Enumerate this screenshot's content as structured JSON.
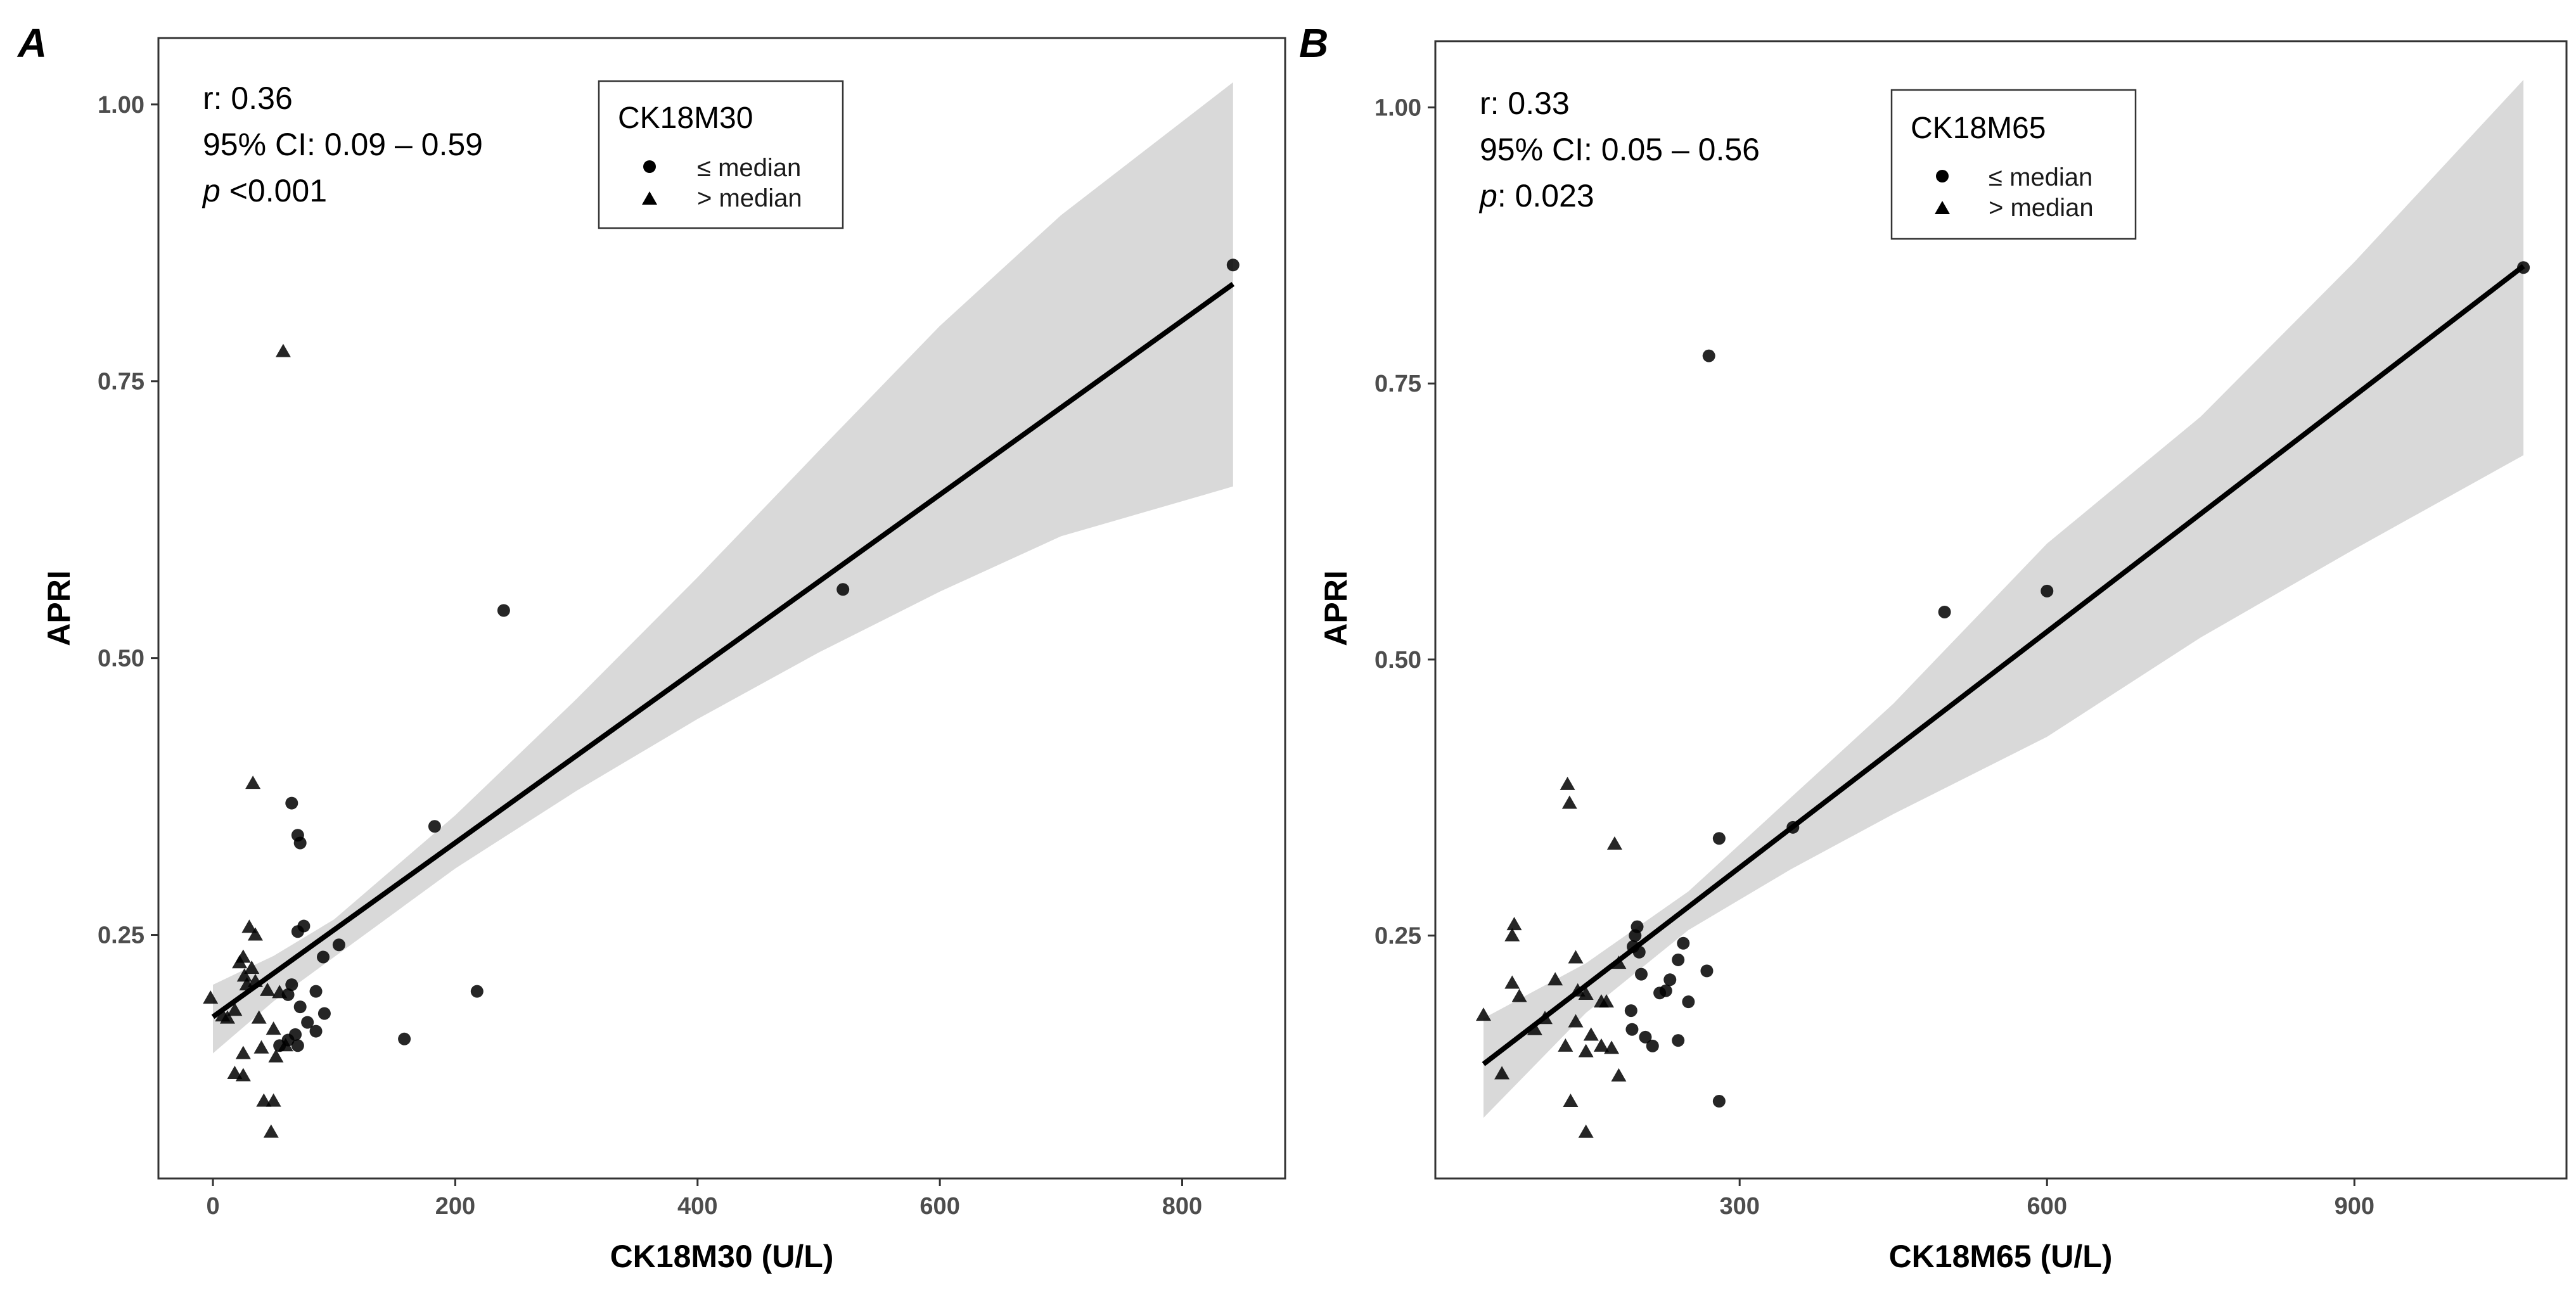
{
  "chart_data": [
    {
      "type": "scatter",
      "panel": "A",
      "xlabel": "CK18M30 (U/L)",
      "ylabel": "APRI",
      "xlim": [
        -45,
        885
      ],
      "ylim": [
        0.03,
        1.06
      ],
      "xticks": [
        0,
        200,
        400,
        600,
        800
      ],
      "xtick_labels": [
        "0",
        "200",
        "400",
        "600",
        "800"
      ],
      "yticks": [
        0.25,
        0.5,
        0.75,
        1.0
      ],
      "ytick_labels": [
        "0.25",
        "0.50",
        "0.75",
        "1.00"
      ],
      "grid": false,
      "stats": {
        "r": "r: 0.36",
        "ci": "95% CI: 0.09 – 0.59",
        "p_symbol": "p",
        "p_value": " <0.001"
      },
      "legend": {
        "title": "CK18M30",
        "position": "top-center",
        "items": [
          "≤ median",
          "> median"
        ]
      },
      "fit": {
        "intercept": 0.176,
        "slope": 0.000786,
        "x_range": [
          0,
          842
        ]
      },
      "band": {
        "x": [
          0,
          50,
          100,
          200,
          300,
          400,
          500,
          600,
          700,
          842
        ],
        "lower": [
          0.143,
          0.19,
          0.23,
          0.31,
          0.38,
          0.445,
          0.505,
          0.56,
          0.61,
          0.655
        ],
        "upper": [
          0.205,
          0.231,
          0.264,
          0.358,
          0.463,
          0.573,
          0.687,
          0.8,
          0.9,
          1.02
        ]
      },
      "series": [
        {
          "name": "≤ median",
          "marker": "circle",
          "points": [
            [
              842,
              0.855
            ],
            [
              520,
              0.562
            ],
            [
              240,
              0.543
            ],
            [
              183,
              0.348
            ],
            [
              65,
              0.369
            ],
            [
              70,
              0.34
            ],
            [
              72,
              0.333
            ],
            [
              75,
              0.258
            ],
            [
              70,
              0.253
            ],
            [
              104,
              0.241
            ],
            [
              91,
              0.23
            ],
            [
              218,
              0.199
            ],
            [
              158,
              0.156
            ],
            [
              65,
              0.205
            ],
            [
              85,
              0.199
            ],
            [
              62,
              0.196
            ],
            [
              72,
              0.185
            ],
            [
              92,
              0.179
            ],
            [
              78,
              0.171
            ],
            [
              85,
              0.163
            ],
            [
              68,
              0.16
            ],
            [
              62,
              0.155
            ],
            [
              70,
              0.15
            ],
            [
              55,
              0.15
            ]
          ]
        },
        {
          "name": "> median",
          "marker": "triangle",
          "points": [
            [
              58,
              0.777
            ],
            [
              33,
              0.387
            ],
            [
              30,
              0.257
            ],
            [
              35,
              0.25
            ],
            [
              25,
              0.23
            ],
            [
              22,
              0.225
            ],
            [
              32,
              0.22
            ],
            [
              26,
              0.213
            ],
            [
              35,
              0.208
            ],
            [
              28,
              0.205
            ],
            [
              45,
              0.2
            ],
            [
              55,
              0.198
            ],
            [
              -2,
              0.193
            ],
            [
              18,
              0.182
            ],
            [
              8,
              0.177
            ],
            [
              12,
              0.175
            ],
            [
              38,
              0.175
            ],
            [
              50,
              0.165
            ],
            [
              60,
              0.15
            ],
            [
              40,
              0.148
            ],
            [
              25,
              0.143
            ],
            [
              52,
              0.14
            ],
            [
              18,
              0.125
            ],
            [
              25,
              0.123
            ],
            [
              42,
              0.1
            ],
            [
              50,
              0.1
            ],
            [
              48,
              0.072
            ]
          ]
        }
      ]
    },
    {
      "type": "scatter",
      "panel": "B",
      "xlabel": "CK18M65 (U/L)",
      "ylabel": "APRI",
      "xlim": [
        3,
        1107
      ],
      "ylim": [
        0.03,
        1.06
      ],
      "xticks": [
        300,
        600,
        900
      ],
      "xtick_labels": [
        "300",
        "600",
        "900"
      ],
      "yticks": [
        0.25,
        0.5,
        0.75,
        1.0
      ],
      "ytick_labels": [
        "0.25",
        "0.50",
        "0.75",
        "1.00"
      ],
      "grid": false,
      "stats": {
        "r": "r: 0.33",
        "ci": "95% CI: 0.05 – 0.56",
        "p_symbol": "p",
        "p_value": ": 0.023"
      },
      "legend": {
        "title": "CK18M65",
        "position": "top-center",
        "items": [
          "≤ median",
          "> median"
        ]
      },
      "fit": {
        "intercept": 0.098,
        "slope": 0.000712,
        "x_range": [
          50,
          1065
        ]
      },
      "band": {
        "x": [
          50,
          150,
          250,
          350,
          450,
          600,
          750,
          900,
          1065
        ],
        "lower": [
          0.085,
          0.18,
          0.255,
          0.31,
          0.36,
          0.43,
          0.52,
          0.6,
          0.685
        ],
        "upper": [
          0.175,
          0.225,
          0.29,
          0.375,
          0.46,
          0.605,
          0.72,
          0.86,
          1.025
        ]
      },
      "series": [
        {
          "name": "≤ median",
          "marker": "circle",
          "points": [
            [
              1065,
              0.855
            ],
            [
              600,
              0.562
            ],
            [
              500,
              0.543
            ],
            [
              352,
              0.348
            ],
            [
              270,
              0.775
            ],
            [
              280,
              0.338
            ],
            [
              200,
              0.258
            ],
            [
              198,
              0.25
            ],
            [
              245,
              0.243
            ],
            [
              196,
              0.24
            ],
            [
              202,
              0.235
            ],
            [
              240,
              0.228
            ],
            [
              268,
              0.218
            ],
            [
              204,
              0.215
            ],
            [
              232,
              0.21
            ],
            [
              228,
              0.2
            ],
            [
              222,
              0.198
            ],
            [
              250,
              0.19
            ],
            [
              194,
              0.182
            ],
            [
              195,
              0.165
            ],
            [
              208,
              0.158
            ],
            [
              240,
              0.155
            ],
            [
              215,
              0.15
            ],
            [
              280,
              0.1
            ]
          ]
        },
        {
          "name": "> median",
          "marker": "triangle",
          "points": [
            [
              132,
              0.387
            ],
            [
              134,
              0.37
            ],
            [
              178,
              0.333
            ],
            [
              80,
              0.26
            ],
            [
              78,
              0.25
            ],
            [
              140,
              0.23
            ],
            [
              182,
              0.225
            ],
            [
              120,
              0.21
            ],
            [
              78,
              0.207
            ],
            [
              142,
              0.2
            ],
            [
              150,
              0.197
            ],
            [
              85,
              0.195
            ],
            [
              165,
              0.19
            ],
            [
              170,
              0.19
            ],
            [
              50,
              0.178
            ],
            [
              110,
              0.175
            ],
            [
              140,
              0.172
            ],
            [
              100,
              0.165
            ],
            [
              155,
              0.16
            ],
            [
              130,
              0.15
            ],
            [
              165,
              0.15
            ],
            [
              150,
              0.145
            ],
            [
              175,
              0.148
            ],
            [
              68,
              0.125
            ],
            [
              182,
              0.123
            ],
            [
              135,
              0.1
            ],
            [
              150,
              0.072
            ]
          ]
        }
      ]
    }
  ]
}
